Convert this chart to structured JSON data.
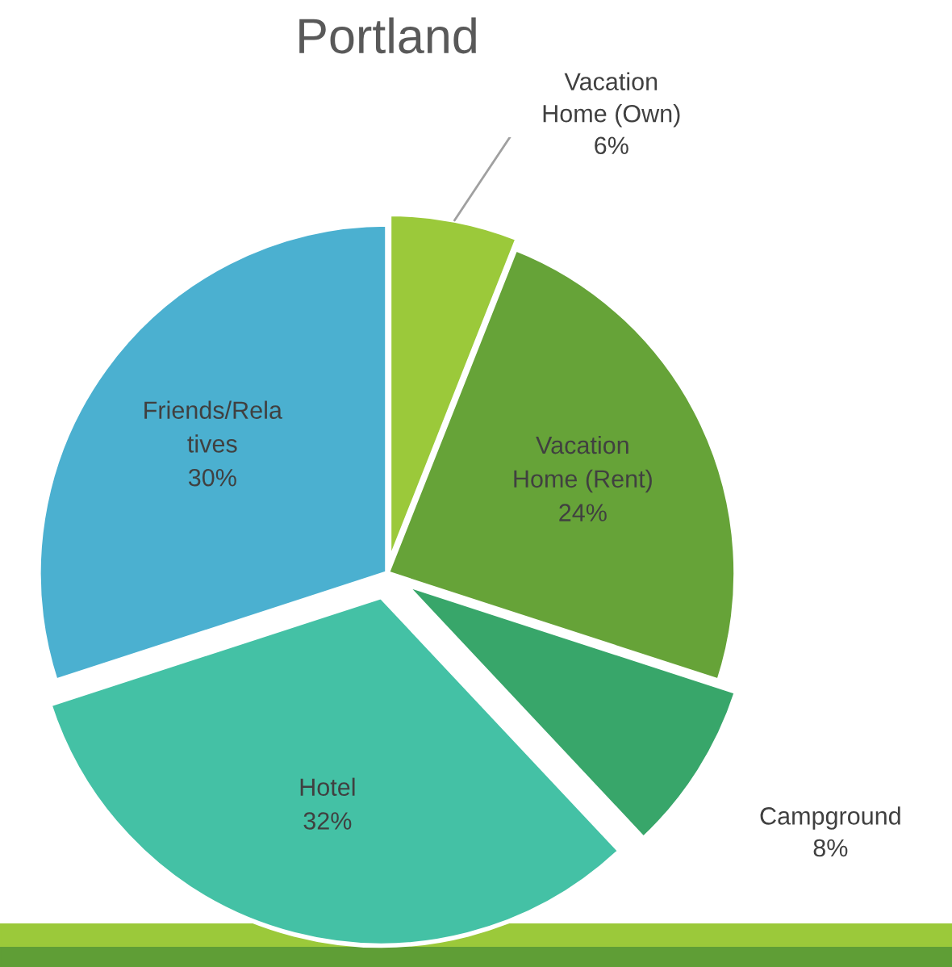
{
  "chart_data": {
    "type": "pie",
    "title": "Portland",
    "categories": [
      "Vacation\nHome (Own)",
      "Vacation\nHome (Rent)",
      "Campground",
      "Hotel",
      "Friends/Rela\ntives"
    ],
    "values": [
      6,
      24,
      8,
      32,
      30
    ],
    "value_labels": [
      "6%",
      "24%",
      "8%",
      "32%",
      "30%"
    ],
    "colors": [
      "#9bc93a",
      "#66a338",
      "#38a66a",
      "#44c1a5",
      "#4bb0d0"
    ]
  }
}
